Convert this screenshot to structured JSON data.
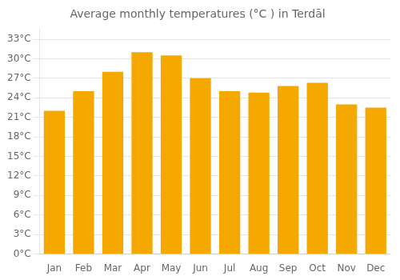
{
  "chart_data": {
    "type": "bar",
    "title": "Average monthly temperatures (°C ) in Terdāl",
    "categories": [
      "Jan",
      "Feb",
      "Mar",
      "Apr",
      "May",
      "Jun",
      "Jul",
      "Aug",
      "Sep",
      "Oct",
      "Nov",
      "Dec"
    ],
    "values": [
      22.0,
      25.0,
      28.0,
      31.0,
      30.5,
      27.0,
      25.0,
      24.8,
      25.8,
      26.3,
      23.0,
      22.5
    ],
    "color": "#F5A800",
    "ylim": [
      0,
      34.5
    ],
    "yticks": [
      {
        "value": 0,
        "label": "0°C"
      },
      {
        "value": 3,
        "label": "3°C"
      },
      {
        "value": 6,
        "label": "6°C"
      },
      {
        "value": 9,
        "label": "9°C"
      },
      {
        "value": 12,
        "label": "12°C"
      },
      {
        "value": 15,
        "label": "15°C"
      },
      {
        "value": 18,
        "label": "18°C"
      },
      {
        "value": 21,
        "label": "21°C"
      },
      {
        "value": 24,
        "label": "24°C"
      },
      {
        "value": 27,
        "label": "27°C"
      },
      {
        "value": 30,
        "label": "30°C"
      },
      {
        "value": 33,
        "label": "33°C"
      }
    ],
    "grid": true
  }
}
